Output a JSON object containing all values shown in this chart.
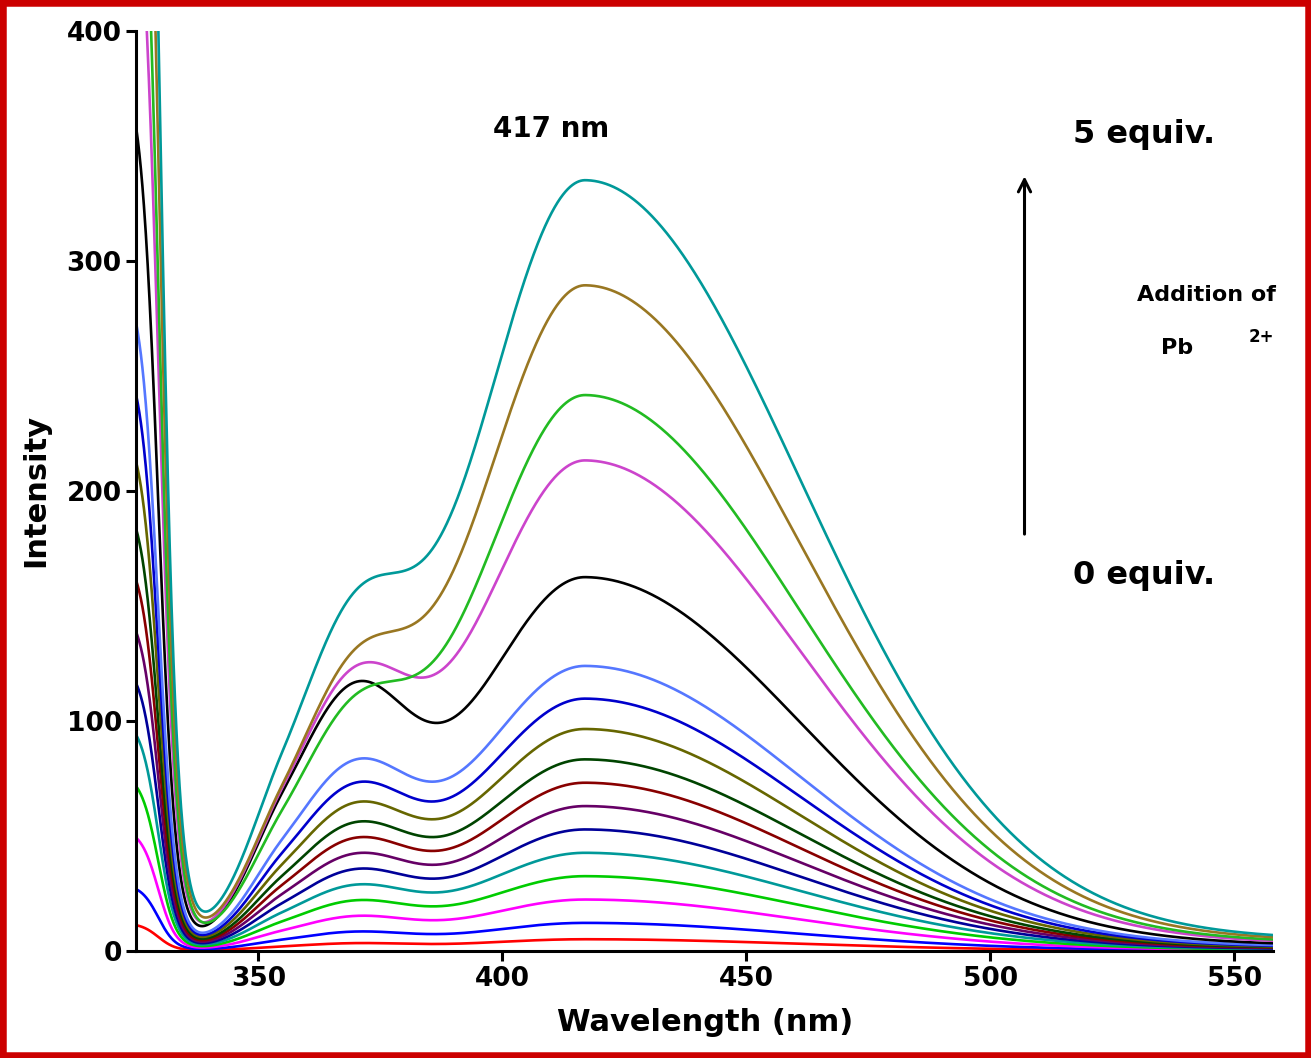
{
  "xlabel": "Wavelength (nm)",
  "ylabel": "Intensity",
  "annotation_peak": "417 nm",
  "annotation_top": "5 equiv.",
  "annotation_bottom": "0 equiv.",
  "addition_line1": "Addition of",
  "addition_line2": "Pb",
  "superscript": "2+",
  "xlim": [
    325,
    558
  ],
  "ylim": [
    0,
    400
  ],
  "xticks": [
    350,
    400,
    450,
    500,
    550
  ],
  "yticks": [
    0,
    100,
    200,
    300,
    400
  ],
  "x_start": 325,
  "x_end": 558,
  "background_color": "#ffffff",
  "border_color": "#cc0000",
  "curves": [
    {
      "color": "#ff0000",
      "peak": 5,
      "shoulder": 2,
      "valley_depth": 0.6
    },
    {
      "color": "#0000ff",
      "peak": 12,
      "shoulder": 5,
      "valley_depth": 0.6
    },
    {
      "color": "#ff00ff",
      "peak": 22,
      "shoulder": 9,
      "valley_depth": 0.6
    },
    {
      "color": "#00cc00",
      "peak": 32,
      "shoulder": 13,
      "valley_depth": 0.6
    },
    {
      "color": "#009999",
      "peak": 42,
      "shoulder": 17,
      "valley_depth": 0.6
    },
    {
      "color": "#000099",
      "peak": 52,
      "shoulder": 21,
      "valley_depth": 0.6
    },
    {
      "color": "#660066",
      "peak": 62,
      "shoulder": 25,
      "valley_depth": 0.6
    },
    {
      "color": "#880000",
      "peak": 72,
      "shoulder": 29,
      "valley_depth": 0.6
    },
    {
      "color": "#004400",
      "peak": 82,
      "shoulder": 33,
      "valley_depth": 0.6
    },
    {
      "color": "#666600",
      "peak": 95,
      "shoulder": 38,
      "valley_depth": 0.6
    },
    {
      "color": "#0000cc",
      "peak": 108,
      "shoulder": 43,
      "valley_depth": 0.6
    },
    {
      "color": "#5577ff",
      "peak": 122,
      "shoulder": 49,
      "valley_depth": 0.6
    },
    {
      "color": "#000000",
      "peak": 160,
      "shoulder": 70,
      "valley_depth": 0.55
    },
    {
      "color": "#cc44cc",
      "peak": 210,
      "shoulder": 70,
      "valley_depth": 0.55
    },
    {
      "color": "#22bb22",
      "peak": 238,
      "shoulder": 58,
      "valley_depth": 0.55
    },
    {
      "color": "#997722",
      "peak": 285,
      "shoulder": 68,
      "valley_depth": 0.55
    },
    {
      "color": "#009999",
      "peak": 330,
      "shoulder": 82,
      "valley_depth": 0.5
    }
  ]
}
